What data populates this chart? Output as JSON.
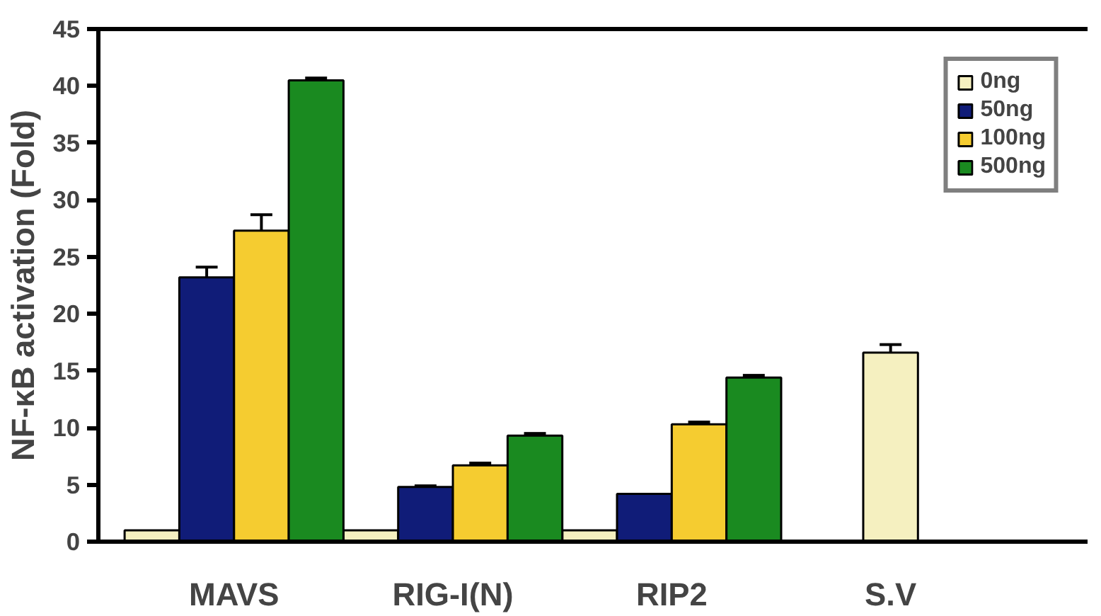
{
  "chart_data": {
    "type": "bar",
    "ylabel": "NF-κB activation (Fold)",
    "categories": [
      "MAVS",
      "RIG-I(N)",
      "RIP2",
      "S.V"
    ],
    "series": [
      {
        "name": "0ng",
        "color": "#f5f0c0",
        "values": [
          1.0,
          1.0,
          1.0,
          16.6
        ],
        "errors": [
          null,
          null,
          null,
          0.7
        ]
      },
      {
        "name": "50ng",
        "color": "#101c78",
        "values": [
          23.2,
          4.8,
          4.2,
          null
        ],
        "errors": [
          0.9,
          0.1,
          null,
          null
        ]
      },
      {
        "name": "100ng",
        "color": "#f5cc30",
        "values": [
          27.3,
          6.7,
          10.3,
          null
        ],
        "errors": [
          1.4,
          0.2,
          0.2,
          null
        ]
      },
      {
        "name": "500ng",
        "color": "#1a8a20",
        "values": [
          40.5,
          9.3,
          14.4,
          null
        ],
        "errors": [
          0.2,
          0.2,
          0.2,
          null
        ]
      }
    ],
    "ylim": [
      0,
      45
    ],
    "yticks": [
      0,
      5,
      10,
      15,
      20,
      25,
      30,
      35,
      40,
      45
    ],
    "grid": false,
    "legend": "top right"
  }
}
